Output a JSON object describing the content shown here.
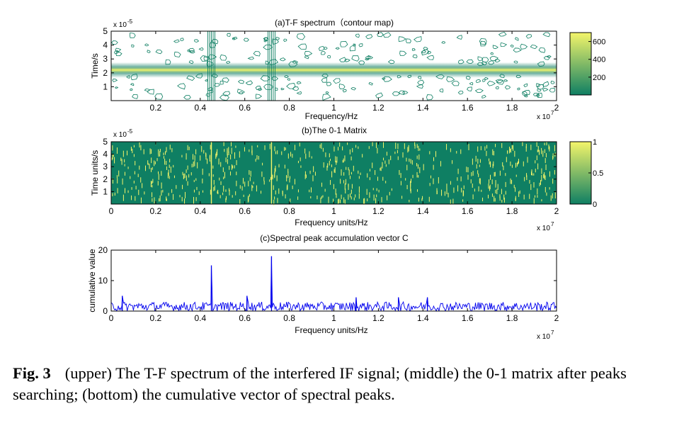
{
  "figure": {
    "panels": [
      {
        "id": "a",
        "title": "(a)T-F spectrum（contour map)",
        "xlabel": "Frequency/Hz",
        "ylabel": "Time/s",
        "x_exponent": "x 10",
        "x_exponent_power": "7",
        "y_exponent": "x 10",
        "y_exponent_power": "-5",
        "xticks": [
          "0.2",
          "0.4",
          "0.6",
          "0.8",
          "1",
          "1.2",
          "1.4",
          "1.6",
          "1.8",
          "2"
        ],
        "yticks": [
          "1",
          "2",
          "3",
          "4",
          "5"
        ],
        "colorbar_ticks": [
          "200",
          "400",
          "600"
        ]
      },
      {
        "id": "b",
        "title": "(b)The 0-1 Matrix",
        "xlabel": "Frequency units/Hz",
        "ylabel": "Time units/s",
        "x_exponent": "x 10",
        "x_exponent_power": "7",
        "y_exponent": "x 10",
        "y_exponent_power": "-5",
        "xticks": [
          "0",
          "0.2",
          "0.4",
          "0.6",
          "0.8",
          "1",
          "1.2",
          "1.4",
          "1.6",
          "1.8",
          "2"
        ],
        "yticks": [
          "1",
          "2",
          "3",
          "4",
          "5"
        ],
        "colorbar_ticks": [
          "0",
          "0.5",
          "1"
        ]
      },
      {
        "id": "c",
        "title": "(c)Spectral peak accumulation vector C",
        "xlabel": "Frequency units/Hz",
        "ylabel": "cumulative value",
        "x_exponent": "x 10",
        "x_exponent_power": "7",
        "xticks": [
          "0",
          "0.2",
          "0.4",
          "0.6",
          "0.8",
          "1",
          "1.2",
          "1.4",
          "1.6",
          "1.8",
          "2"
        ],
        "yticks": [
          "0",
          "10",
          "20"
        ]
      }
    ]
  },
  "caption": {
    "label": "Fig. 3",
    "text": "(upper) The T-F spectrum of the interfered IF signal; (middle) the 0-1 matrix after peaks searching; (bottom) the cumulative vector of spectral peaks."
  },
  "colors": {
    "low": "#0f7f63",
    "high": "#f4f56a",
    "line": "#0000ee"
  },
  "chart_data": [
    {
      "type": "heatmap",
      "title": "(a)T-F spectrum（contour map)",
      "x_range": [
        0,
        20000000
      ],
      "y_range": [
        0,
        5e-05
      ],
      "z_range": [
        0,
        700
      ],
      "dominant_ridge_time": 2.2e-05,
      "interference_frequencies": [
        4500000,
        7200000
      ]
    },
    {
      "type": "heatmap",
      "title": "(b)The 0-1 Matrix",
      "x_range": [
        0,
        20000000
      ],
      "y_range": [
        0,
        5e-05
      ],
      "z_range": [
        0,
        1
      ],
      "full_columns_at": [
        4500000,
        7200000
      ]
    },
    {
      "type": "line",
      "title": "(c)Spectral peak accumulation vector C",
      "x_range": [
        0,
        20000000
      ],
      "ylim": [
        0,
        20
      ],
      "baseline_range": [
        0,
        3
      ],
      "peaks": [
        {
          "x": 4500000,
          "y": 15
        },
        {
          "x": 7200000,
          "y": 18
        },
        {
          "x": 6100000,
          "y": 5
        },
        {
          "x": 500000,
          "y": 5
        },
        {
          "x": 11000000,
          "y": 4.5
        },
        {
          "x": 12900000,
          "y": 4.5
        },
        {
          "x": 14200000,
          "y": 4.5
        }
      ]
    }
  ]
}
